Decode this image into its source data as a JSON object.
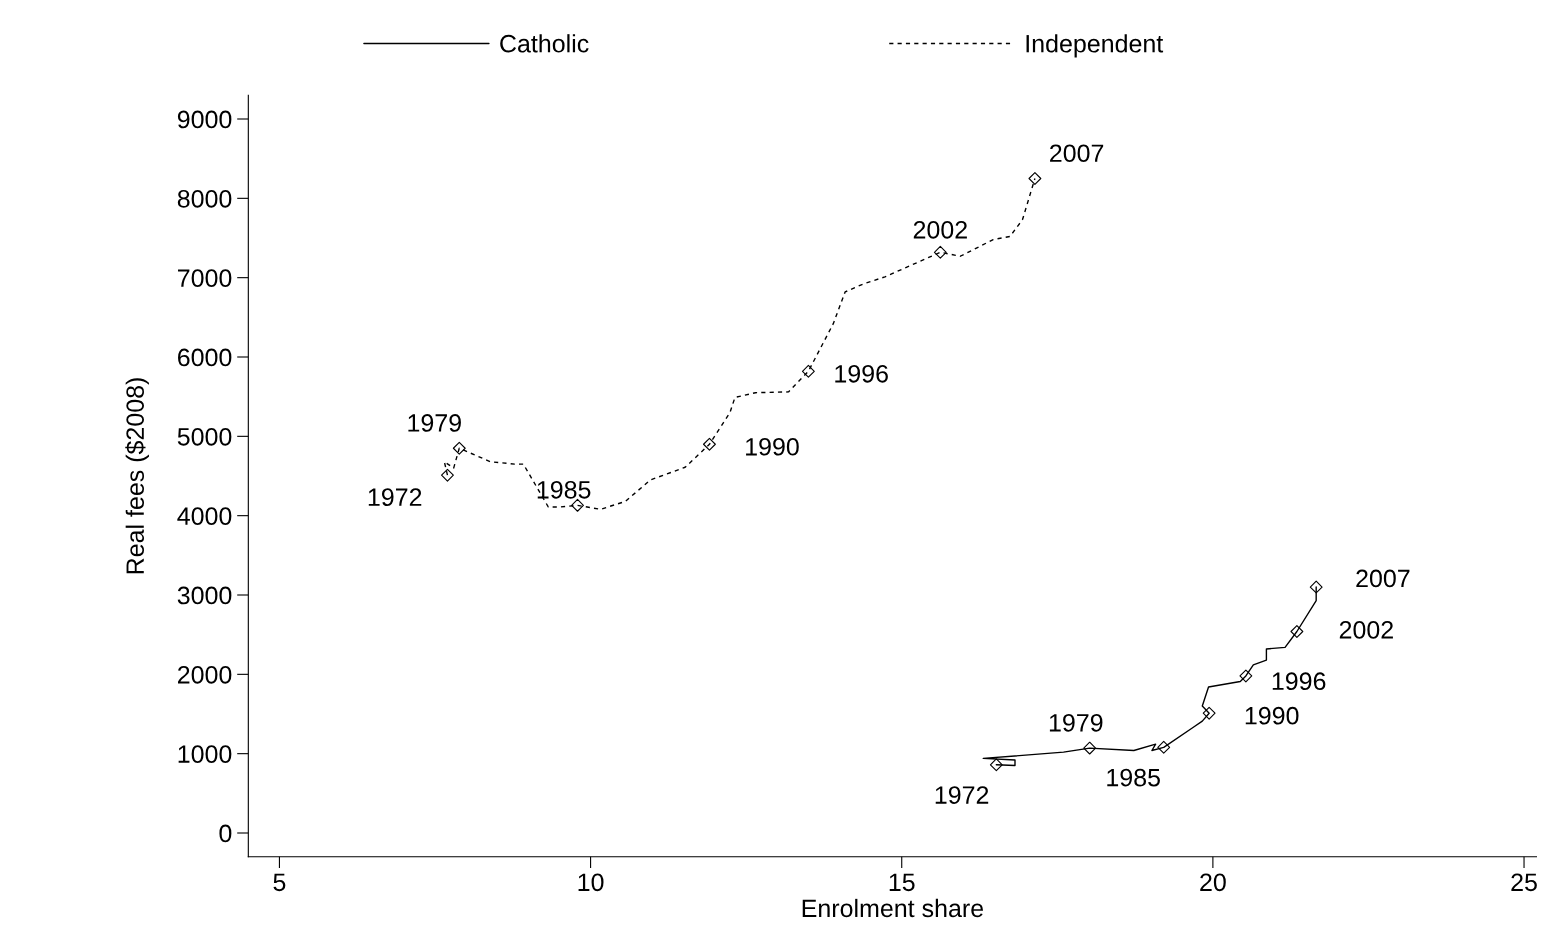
{
  "chart_data": {
    "type": "line",
    "xlabel": "Enrolment share",
    "ylabel": "Real fees ($2008)",
    "xlim": [
      4.5,
      25.2
    ],
    "xticks": [
      5,
      10,
      15,
      20,
      25
    ],
    "ylim": [
      -300,
      9300
    ],
    "yticks": [
      0,
      1000,
      2000,
      3000,
      4000,
      5000,
      6000,
      7000,
      8000,
      9000
    ],
    "grid": false,
    "legend": "top",
    "marker": "none",
    "series": [
      {
        "name": "Catholic",
        "color": "#000000",
        "line_style": "solid",
        "x": [
          16.52,
          16.82,
          16.82,
          16.31,
          17.6,
          18.02,
          18.73,
          19.08,
          19.02,
          19.21,
          19.68,
          19.83,
          19.94,
          19.83,
          19.93,
          20.44,
          20.53,
          20.65,
          20.86,
          20.86,
          21.16,
          21.35,
          21.66,
          21.66
        ],
        "values": [
          860,
          850,
          920,
          940,
          1020,
          1070,
          1040,
          1120,
          1040,
          1080,
          1330,
          1410,
          1510,
          1600,
          1840,
          1910,
          1980,
          2120,
          2180,
          2320,
          2340,
          2540,
          2930,
          3100
        ]
      },
      {
        "name": "Independent",
        "color": "#000000",
        "line_style": "dashed",
        "x": [
          7.7,
          7.65,
          7.8,
          7.89,
          8.39,
          8.78,
          8.92,
          9.32,
          9.51,
          9.79,
          10.16,
          10.56,
          10.96,
          11.52,
          11.91,
          12.24,
          12.32,
          12.65,
          13.18,
          13.5,
          13.9,
          14.09,
          14.38,
          14.73,
          15.62,
          15.94,
          16.47,
          16.74,
          16.94,
          17.14
        ],
        "values": [
          4510,
          4680,
          4600,
          4850,
          4680,
          4650,
          4650,
          4110,
          4110,
          4130,
          4080,
          4180,
          4450,
          4610,
          4900,
          5300,
          5490,
          5550,
          5560,
          5820,
          6420,
          6820,
          6920,
          7010,
          7320,
          7270,
          7480,
          7520,
          7730,
          8250
        ]
      },
      {
        "type": "scatter",
        "marker": "diamond",
        "color": "#000000",
        "x": [
          16.52,
          18.02,
          19.21,
          19.94,
          20.53,
          21.35,
          21.66,
          7.7,
          7.89,
          9.79,
          11.91,
          13.5,
          15.62,
          17.14
        ],
        "values": [
          860,
          1070,
          1080,
          1510,
          1980,
          2540,
          3100,
          4510,
          4850,
          4130,
          4900,
          5820,
          7320,
          8250
        ]
      }
    ],
    "annotations": [
      {
        "text": "1972",
        "x": 16.52,
        "y": 860
      },
      {
        "text": "1979",
        "x": 18.02,
        "y": 1070
      },
      {
        "text": "1985",
        "x": 19.21,
        "y": 1080
      },
      {
        "text": "1990",
        "x": 19.94,
        "y": 1510
      },
      {
        "text": "1996",
        "x": 20.53,
        "y": 1980
      },
      {
        "text": "2002",
        "x": 21.35,
        "y": 2540
      },
      {
        "text": "2007",
        "x": 21.66,
        "y": 3100
      },
      {
        "text": "1972",
        "x": 7.7,
        "y": 4510
      },
      {
        "text": "1979",
        "x": 7.89,
        "y": 4850
      },
      {
        "text": "1985",
        "x": 9.79,
        "y": 4130
      },
      {
        "text": "1990",
        "x": 11.91,
        "y": 4900
      },
      {
        "text": "1996",
        "x": 13.5,
        "y": 5820
      },
      {
        "text": "2002",
        "x": 15.62,
        "y": 7320
      },
      {
        "text": "2007",
        "x": 17.14,
        "y": 8250
      }
    ]
  }
}
